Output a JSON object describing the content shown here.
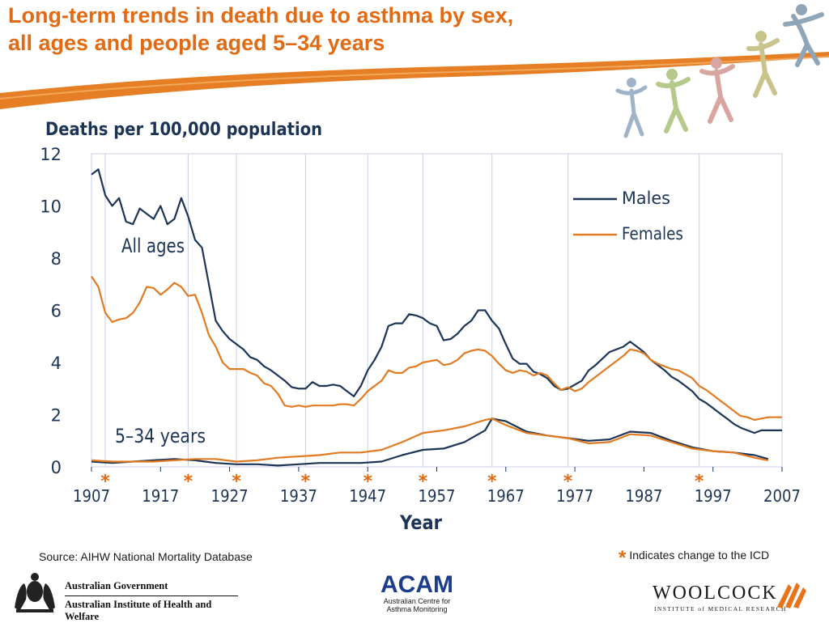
{
  "slide_title_line1": "Long-term trends in death due to asthma by sex,",
  "slide_title_line2": "all ages and people aged 5–34 years",
  "source": "Source: AIHW National Mortality Database",
  "icd_star": "*",
  "icd_note": "Indicates change to the ICD",
  "logos": {
    "gov_line1": "Australian Government",
    "gov_line2": "Australian Institute of Health and Welfare",
    "acam_name": "ACAM",
    "acam_line1": "Australian Centre for",
    "acam_line2": "Asthma Monitoring",
    "woolcock_name": "WOOLCOCK",
    "woolcock_sub": "INSTITUTE of MEDICAL RESEARCH"
  },
  "colors": {
    "accent": "#E26A12",
    "males": "#1C3557",
    "females": "#E07B22",
    "grid": "#C9CFE8",
    "acam_blue": "#1C3D8C",
    "woolcock_orange": "#E8731A"
  },
  "chart_data": {
    "type": "line",
    "ylabel": "Deaths per 100,000 population",
    "xlabel": "Year",
    "xlim": [
      1907,
      2007
    ],
    "ylim": [
      0,
      12
    ],
    "xticks": [
      1907,
      1917,
      1927,
      1937,
      1947,
      1957,
      1967,
      1977,
      1987,
      1997,
      2007
    ],
    "yticks": [
      0,
      2,
      4,
      6,
      8,
      10,
      12
    ],
    "icd_change_years": [
      1909,
      1921,
      1928,
      1938,
      1947,
      1955,
      1965,
      1976,
      1995
    ],
    "legend": {
      "position": "top-right",
      "entries": [
        "Males",
        "Females"
      ]
    },
    "annotations": {
      "all_ages": "All ages",
      "young": "5–34 years"
    },
    "grid_vertical_years": [
      1909,
      1921,
      1928,
      1938,
      1947,
      1955,
      1965,
      1976,
      1995
    ],
    "series": [
      {
        "name": "Males",
        "group": "All ages",
        "x": [
          1907,
          1908,
          1909,
          1910,
          1911,
          1912,
          1913,
          1914,
          1915,
          1916,
          1917,
          1918,
          1919,
          1920,
          1921,
          1922,
          1923,
          1924,
          1925,
          1926,
          1927,
          1928,
          1929,
          1930,
          1931,
          1932,
          1933,
          1934,
          1935,
          1936,
          1937,
          1938,
          1939,
          1940,
          1941,
          1942,
          1943,
          1944,
          1945,
          1946,
          1947,
          1948,
          1949,
          1950,
          1951,
          1952,
          1953,
          1954,
          1955,
          1956,
          1957,
          1958,
          1959,
          1960,
          1961,
          1962,
          1963,
          1964,
          1965,
          1966,
          1967,
          1968,
          1969,
          1970,
          1971,
          1972,
          1973,
          1974,
          1975,
          1976,
          1977,
          1978,
          1979,
          1980,
          1981,
          1982,
          1983,
          1984,
          1985,
          1986,
          1987,
          1988,
          1989,
          1990,
          1991,
          1992,
          1993,
          1994,
          1995,
          1996,
          1997,
          1998,
          1999,
          2000,
          2001,
          2002,
          2003,
          2004,
          2005,
          2006,
          2007
        ],
        "y": [
          11.2,
          11.4,
          10.4,
          10.0,
          10.3,
          9.4,
          9.3,
          9.9,
          9.7,
          9.5,
          10.0,
          9.3,
          9.5,
          10.3,
          9.6,
          8.7,
          8.4,
          7.0,
          5.6,
          5.2,
          4.9,
          4.7,
          4.5,
          4.2,
          4.1,
          3.85,
          3.7,
          3.5,
          3.3,
          3.05,
          3.0,
          3.0,
          3.25,
          3.1,
          3.1,
          3.15,
          3.1,
          2.9,
          2.7,
          3.1,
          3.7,
          4.1,
          4.6,
          5.4,
          5.5,
          5.5,
          5.85,
          5.8,
          5.7,
          5.5,
          5.4,
          4.85,
          4.9,
          5.1,
          5.4,
          5.6,
          6.0,
          6.0,
          5.6,
          5.3,
          4.7,
          4.15,
          3.95,
          3.95,
          3.65,
          3.55,
          3.4,
          3.1,
          2.95,
          3.0,
          3.15,
          3.3,
          3.7,
          3.9,
          4.15,
          4.4,
          4.5,
          4.6,
          4.8,
          4.6,
          4.4,
          4.1,
          3.9,
          3.7,
          3.45,
          3.3,
          3.1,
          2.9,
          2.6,
          2.45,
          2.25,
          2.05,
          1.85,
          1.65,
          1.5,
          1.4,
          1.3,
          1.4,
          1.4,
          1.4,
          1.4
        ]
      },
      {
        "name": "Females",
        "group": "All ages",
        "x": [
          1907,
          1908,
          1909,
          1910,
          1911,
          1912,
          1913,
          1914,
          1915,
          1916,
          1917,
          1918,
          1919,
          1920,
          1921,
          1922,
          1923,
          1924,
          1925,
          1926,
          1927,
          1928,
          1929,
          1930,
          1931,
          1932,
          1933,
          1934,
          1935,
          1936,
          1937,
          1938,
          1939,
          1940,
          1941,
          1942,
          1943,
          1944,
          1945,
          1946,
          1947,
          1948,
          1949,
          1950,
          1951,
          1952,
          1953,
          1954,
          1955,
          1956,
          1957,
          1958,
          1959,
          1960,
          1961,
          1962,
          1963,
          1964,
          1965,
          1966,
          1967,
          1968,
          1969,
          1970,
          1971,
          1972,
          1973,
          1974,
          1975,
          1976,
          1977,
          1978,
          1979,
          1980,
          1981,
          1982,
          1983,
          1984,
          1985,
          1986,
          1987,
          1988,
          1989,
          1990,
          1991,
          1992,
          1993,
          1994,
          1995,
          1996,
          1997,
          1998,
          1999,
          2000,
          2001,
          2002,
          2003,
          2004,
          2005,
          2006,
          2007
        ],
        "y": [
          7.3,
          6.9,
          5.9,
          5.55,
          5.65,
          5.7,
          5.9,
          6.3,
          6.9,
          6.85,
          6.6,
          6.8,
          7.05,
          6.9,
          6.55,
          6.6,
          5.9,
          5.05,
          4.6,
          4.0,
          3.75,
          3.75,
          3.75,
          3.6,
          3.5,
          3.2,
          3.1,
          2.8,
          2.35,
          2.3,
          2.35,
          2.3,
          2.35,
          2.35,
          2.35,
          2.35,
          2.4,
          2.4,
          2.35,
          2.6,
          2.9,
          3.1,
          3.3,
          3.7,
          3.6,
          3.6,
          3.8,
          3.85,
          4.0,
          4.05,
          4.1,
          3.9,
          3.95,
          4.1,
          4.35,
          4.45,
          4.5,
          4.45,
          4.25,
          3.95,
          3.7,
          3.6,
          3.7,
          3.65,
          3.5,
          3.6,
          3.5,
          3.2,
          2.95,
          3.05,
          2.9,
          3.0,
          3.25,
          3.45,
          3.65,
          3.85,
          4.05,
          4.25,
          4.5,
          4.45,
          4.35,
          4.1,
          3.95,
          3.85,
          3.75,
          3.7,
          3.55,
          3.4,
          3.1,
          2.95,
          2.75,
          2.55,
          2.35,
          2.15,
          1.95,
          1.9,
          1.8,
          1.85,
          1.9,
          1.9,
          1.9
        ]
      },
      {
        "name": "Males",
        "group": "5–34 years",
        "x": [
          1907,
          1910,
          1913,
          1916,
          1919,
          1922,
          1925,
          1928,
          1931,
          1934,
          1937,
          1940,
          1943,
          1946,
          1949,
          1952,
          1955,
          1958,
          1961,
          1964,
          1965,
          1967,
          1970,
          1973,
          1976,
          1979,
          1982,
          1985,
          1988,
          1991,
          1994,
          1997,
          2000,
          2003,
          2005
        ],
        "y": [
          0.2,
          0.15,
          0.2,
          0.25,
          0.3,
          0.25,
          0.15,
          0.1,
          0.1,
          0.05,
          0.1,
          0.15,
          0.15,
          0.15,
          0.2,
          0.45,
          0.65,
          0.7,
          0.95,
          1.4,
          1.85,
          1.75,
          1.35,
          1.2,
          1.1,
          1.0,
          1.05,
          1.35,
          1.3,
          1.0,
          0.75,
          0.6,
          0.55,
          0.45,
          0.3
        ]
      },
      {
        "name": "Females",
        "group": "5–34 years",
        "x": [
          1907,
          1910,
          1913,
          1916,
          1919,
          1922,
          1925,
          1928,
          1931,
          1934,
          1937,
          1940,
          1943,
          1946,
          1949,
          1952,
          1955,
          1958,
          1961,
          1964,
          1965,
          1967,
          1970,
          1973,
          1976,
          1979,
          1982,
          1985,
          1988,
          1991,
          1994,
          1997,
          2000,
          2003,
          2005
        ],
        "y": [
          0.25,
          0.2,
          0.2,
          0.2,
          0.25,
          0.3,
          0.3,
          0.2,
          0.25,
          0.35,
          0.4,
          0.45,
          0.55,
          0.55,
          0.65,
          0.95,
          1.3,
          1.4,
          1.55,
          1.8,
          1.85,
          1.6,
          1.3,
          1.2,
          1.1,
          0.9,
          0.95,
          1.25,
          1.2,
          0.95,
          0.7,
          0.6,
          0.55,
          0.35,
          0.25
        ]
      }
    ]
  }
}
